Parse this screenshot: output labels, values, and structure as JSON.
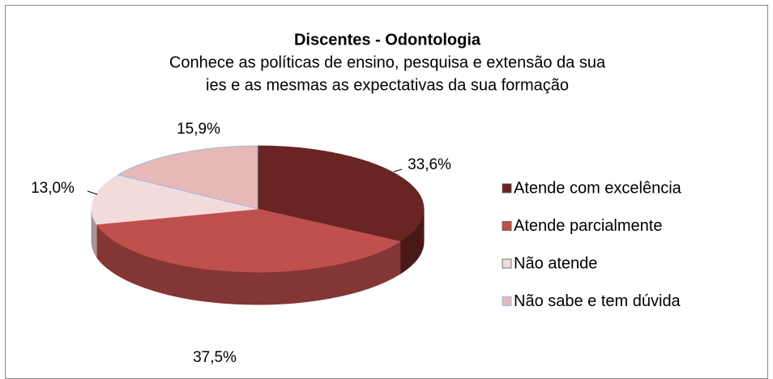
{
  "chart_data": {
    "type": "pie",
    "title": "Discentes - Odontologia",
    "subtitle": [
      "Conhece as políticas de ensino, pesquisa e extensão da sua",
      "ies e as mesmas as expectativas da sua formação"
    ],
    "categories": [
      "Atende com excelência",
      "Atende parcialmente",
      "Não atende",
      "Não sabe e tem dúvida"
    ],
    "values": [
      33.6,
      37.5,
      13.0,
      15.9
    ],
    "value_labels": [
      "33,6%",
      "37,5%",
      "13,0%",
      "15,9%"
    ],
    "colors": [
      "#6b2424",
      "#c0504d",
      "#f2dcdb",
      "#e6b9b8"
    ],
    "legend": "right"
  }
}
